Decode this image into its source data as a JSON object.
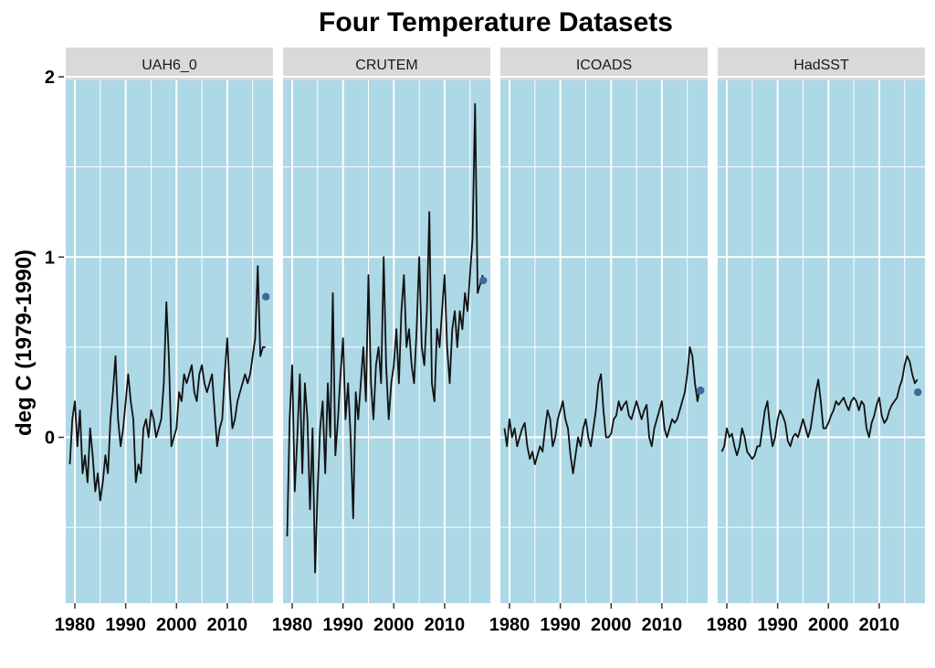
{
  "chart_data": {
    "type": "line",
    "title": "Four Temperature Datasets",
    "xlabel": "",
    "ylabel": "deg C (1979-1990)",
    "xlim": [
      1978.2,
      2019.0
    ],
    "ylim": [
      -0.92,
      1.98
    ],
    "x_ticks": [
      1980,
      1990,
      2000,
      2010
    ],
    "y_ticks": [
      0,
      1,
      2
    ],
    "y_minor": [
      -0.5,
      0.5,
      1.5
    ],
    "grid": true,
    "facet_layout": "1x4",
    "colors": {
      "panel_bg": "#add8e6",
      "strip_bg": "#d9d9d9",
      "line": "#111111",
      "end_point": "#3a6b9a",
      "grid": "#ffffff"
    },
    "panels": [
      {
        "name": "UAH6_0",
        "series": {
          "x": [
            1979.0,
            1979.5,
            1980.0,
            1980.5,
            1981.0,
            1981.5,
            1982.0,
            1982.5,
            1983.0,
            1983.5,
            1984.0,
            1984.5,
            1985.0,
            1985.5,
            1986.0,
            1986.5,
            1987.0,
            1987.5,
            1988.0,
            1988.5,
            1989.0,
            1989.5,
            1990.0,
            1990.5,
            1991.0,
            1991.5,
            1992.0,
            1992.5,
            1993.0,
            1993.5,
            1994.0,
            1994.5,
            1995.0,
            1995.5,
            1996.0,
            1996.5,
            1997.0,
            1997.5,
            1998.0,
            1998.5,
            1999.0,
            1999.5,
            2000.0,
            2000.5,
            2001.0,
            2001.5,
            2002.0,
            2002.5,
            2003.0,
            2003.5,
            2004.0,
            2004.5,
            2005.0,
            2005.5,
            2006.0,
            2006.5,
            2007.0,
            2007.5,
            2008.0,
            2008.5,
            2009.0,
            2009.5,
            2010.0,
            2010.5,
            2011.0,
            2011.5,
            2012.0,
            2012.5,
            2013.0,
            2013.5,
            2014.0,
            2014.5,
            2015.0,
            2015.5,
            2016.0,
            2016.5,
            2017.0,
            2017.5
          ],
          "y": [
            -0.15,
            0.1,
            0.2,
            -0.05,
            0.15,
            -0.2,
            -0.1,
            -0.25,
            0.05,
            -0.1,
            -0.3,
            -0.2,
            -0.35,
            -0.25,
            -0.1,
            -0.2,
            0.1,
            0.25,
            0.45,
            0.1,
            -0.05,
            0.05,
            0.2,
            0.35,
            0.2,
            0.1,
            -0.25,
            -0.15,
            -0.2,
            0.05,
            0.1,
            0.0,
            0.15,
            0.1,
            0.0,
            0.05,
            0.1,
            0.3,
            0.75,
            0.45,
            -0.05,
            0.0,
            0.05,
            0.25,
            0.2,
            0.35,
            0.3,
            0.35,
            0.4,
            0.25,
            0.2,
            0.35,
            0.4,
            0.3,
            0.25,
            0.3,
            0.35,
            0.15,
            -0.05,
            0.05,
            0.1,
            0.35,
            0.55,
            0.25,
            0.05,
            0.1,
            0.2,
            0.25,
            0.3,
            0.35,
            0.3,
            0.35,
            0.45,
            0.55,
            0.95,
            0.45,
            0.5,
            0.5
          ],
          "end_point": [
            2017.6,
            0.78
          ]
        }
      },
      {
        "name": "CRUTEM",
        "series": {
          "x": [
            1979.0,
            1979.5,
            1980.0,
            1980.5,
            1981.0,
            1981.5,
            1982.0,
            1982.5,
            1983.0,
            1983.5,
            1984.0,
            1984.5,
            1985.0,
            1985.5,
            1986.0,
            1986.5,
            1987.0,
            1987.5,
            1988.0,
            1988.5,
            1989.0,
            1989.5,
            1990.0,
            1990.5,
            1991.0,
            1991.5,
            1992.0,
            1992.5,
            1993.0,
            1993.5,
            1994.0,
            1994.5,
            1995.0,
            1995.5,
            1996.0,
            1996.5,
            1997.0,
            1997.5,
            1998.0,
            1998.5,
            1999.0,
            1999.5,
            2000.0,
            2000.5,
            2001.0,
            2001.5,
            2002.0,
            2002.5,
            2003.0,
            2003.5,
            2004.0,
            2004.5,
            2005.0,
            2005.5,
            2006.0,
            2006.5,
            2007.0,
            2007.5,
            2008.0,
            2008.5,
            2009.0,
            2009.5,
            2010.0,
            2010.5,
            2011.0,
            2011.5,
            2012.0,
            2012.5,
            2013.0,
            2013.5,
            2014.0,
            2014.5,
            2015.0,
            2015.5,
            2016.0,
            2016.5,
            2017.0,
            2017.5
          ],
          "y": [
            -0.55,
            0.1,
            0.4,
            -0.3,
            0.0,
            0.35,
            -0.2,
            0.3,
            0.1,
            -0.4,
            0.05,
            -0.75,
            -0.3,
            0.05,
            0.2,
            -0.2,
            0.3,
            0.0,
            0.8,
            -0.1,
            0.1,
            0.35,
            0.55,
            0.1,
            0.3,
            0.0,
            -0.45,
            0.25,
            0.1,
            0.3,
            0.5,
            0.2,
            0.9,
            0.3,
            0.1,
            0.4,
            0.5,
            0.3,
            1.0,
            0.4,
            0.1,
            0.3,
            0.4,
            0.6,
            0.3,
            0.7,
            0.9,
            0.5,
            0.6,
            0.4,
            0.3,
            0.6,
            1.0,
            0.5,
            0.4,
            0.7,
            1.25,
            0.3,
            0.2,
            0.6,
            0.5,
            0.7,
            0.9,
            0.5,
            0.3,
            0.6,
            0.7,
            0.5,
            0.7,
            0.6,
            0.8,
            0.7,
            0.9,
            1.1,
            1.85,
            0.8,
            0.85,
            0.9
          ],
          "end_point": [
            2017.6,
            0.87
          ]
        }
      },
      {
        "name": "ICOADS",
        "series": {
          "x": [
            1979.0,
            1979.5,
            1980.0,
            1980.5,
            1981.0,
            1981.5,
            1982.0,
            1982.5,
            1983.0,
            1983.5,
            1984.0,
            1984.5,
            1985.0,
            1985.5,
            1986.0,
            1986.5,
            1987.0,
            1987.5,
            1988.0,
            1988.5,
            1989.0,
            1989.5,
            1990.0,
            1990.5,
            1991.0,
            1991.5,
            1992.0,
            1992.5,
            1993.0,
            1993.5,
            1994.0,
            1994.5,
            1995.0,
            1995.5,
            1996.0,
            1996.5,
            1997.0,
            1997.5,
            1998.0,
            1998.5,
            1999.0,
            1999.5,
            2000.0,
            2000.5,
            2001.0,
            2001.5,
            2002.0,
            2002.5,
            2003.0,
            2003.5,
            2004.0,
            2004.5,
            2005.0,
            2005.5,
            2006.0,
            2006.5,
            2007.0,
            2007.5,
            2008.0,
            2008.5,
            2009.0,
            2009.5,
            2010.0,
            2010.5,
            2011.0,
            2011.5,
            2012.0,
            2012.5,
            2013.0,
            2013.5,
            2014.0,
            2014.5,
            2015.0,
            2015.5,
            2016.0,
            2016.5,
            2017.0,
            2017.5
          ],
          "y": [
            0.05,
            -0.05,
            0.1,
            0.0,
            0.05,
            -0.05,
            0.0,
            0.05,
            0.08,
            -0.05,
            -0.12,
            -0.08,
            -0.15,
            -0.1,
            -0.05,
            -0.08,
            0.05,
            0.15,
            0.1,
            -0.05,
            0.0,
            0.1,
            0.15,
            0.2,
            0.1,
            0.05,
            -0.1,
            -0.2,
            -0.1,
            0.0,
            -0.05,
            0.05,
            0.1,
            0.0,
            -0.05,
            0.05,
            0.15,
            0.3,
            0.35,
            0.15,
            0.0,
            0.0,
            0.02,
            0.1,
            0.12,
            0.2,
            0.15,
            0.18,
            0.2,
            0.12,
            0.1,
            0.15,
            0.2,
            0.15,
            0.1,
            0.15,
            0.18,
            0.0,
            -0.05,
            0.05,
            0.1,
            0.15,
            0.2,
            0.05,
            0.0,
            0.05,
            0.1,
            0.08,
            0.1,
            0.15,
            0.2,
            0.25,
            0.35,
            0.5,
            0.45,
            0.3,
            0.2,
            0.28
          ],
          "end_point": [
            2017.6,
            0.26
          ]
        }
      },
      {
        "name": "HadSST",
        "series": {
          "x": [
            1979.0,
            1979.5,
            1980.0,
            1980.5,
            1981.0,
            1981.5,
            1982.0,
            1982.5,
            1983.0,
            1983.5,
            1984.0,
            1984.5,
            1985.0,
            1985.5,
            1986.0,
            1986.5,
            1987.0,
            1987.5,
            1988.0,
            1988.5,
            1989.0,
            1989.5,
            1990.0,
            1990.5,
            1991.0,
            1991.5,
            1992.0,
            1992.5,
            1993.0,
            1993.5,
            1994.0,
            1994.5,
            1995.0,
            1995.5,
            1996.0,
            1996.5,
            1997.0,
            1997.5,
            1998.0,
            1998.5,
            1999.0,
            1999.5,
            2000.0,
            2000.5,
            2001.0,
            2001.5,
            2002.0,
            2002.5,
            2003.0,
            2003.5,
            2004.0,
            2004.5,
            2005.0,
            2005.5,
            2006.0,
            2006.5,
            2007.0,
            2007.5,
            2008.0,
            2008.5,
            2009.0,
            2009.5,
            2010.0,
            2010.5,
            2011.0,
            2011.5,
            2012.0,
            2012.5,
            2013.0,
            2013.5,
            2014.0,
            2014.5,
            2015.0,
            2015.5,
            2016.0,
            2016.5,
            2017.0,
            2017.5
          ],
          "y": [
            -0.08,
            -0.05,
            0.05,
            0.0,
            0.02,
            -0.05,
            -0.1,
            -0.05,
            0.05,
            0.0,
            -0.08,
            -0.1,
            -0.12,
            -0.1,
            -0.05,
            -0.05,
            0.05,
            0.15,
            0.2,
            0.05,
            -0.05,
            0.0,
            0.1,
            0.15,
            0.12,
            0.08,
            -0.02,
            -0.05,
            0.0,
            0.02,
            0.0,
            0.05,
            0.1,
            0.05,
            0.0,
            0.05,
            0.15,
            0.25,
            0.32,
            0.2,
            0.05,
            0.05,
            0.08,
            0.12,
            0.15,
            0.2,
            0.18,
            0.2,
            0.22,
            0.18,
            0.15,
            0.2,
            0.22,
            0.2,
            0.15,
            0.2,
            0.18,
            0.05,
            0.0,
            0.08,
            0.12,
            0.18,
            0.22,
            0.12,
            0.08,
            0.1,
            0.15,
            0.18,
            0.2,
            0.22,
            0.28,
            0.32,
            0.4,
            0.45,
            0.42,
            0.35,
            0.3,
            0.32
          ],
          "end_point": [
            2017.6,
            0.25
          ]
        }
      }
    ]
  }
}
